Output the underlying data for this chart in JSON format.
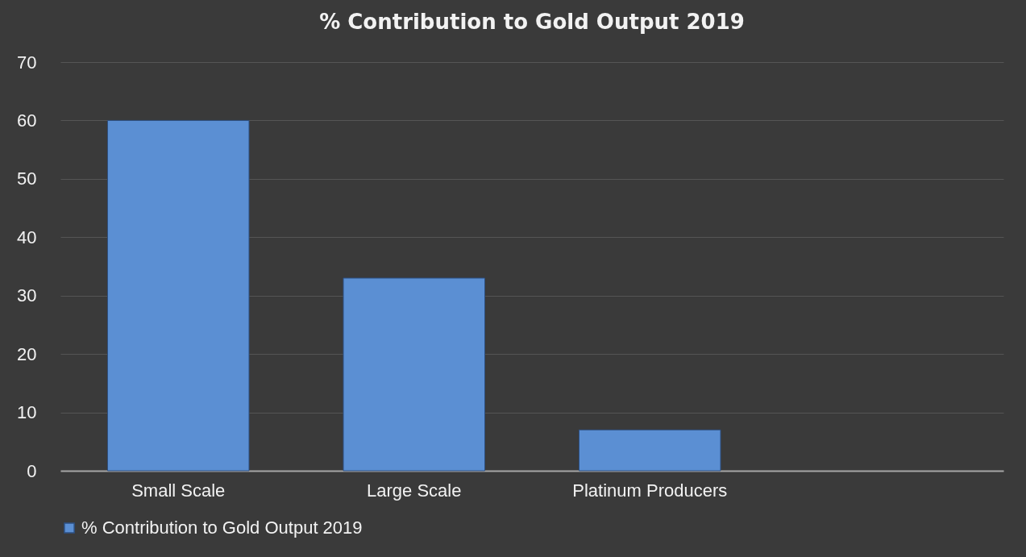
{
  "chart_data": {
    "type": "bar",
    "title": "% Contribution to Gold Output 2019",
    "categories": [
      "Small Scale",
      "Large Scale",
      "Platinum Producers",
      null
    ],
    "series": [
      {
        "name": "% Contribution to Gold Output 2019",
        "color": "#5b8fd3",
        "values": [
          60,
          33,
          7,
          null
        ]
      }
    ],
    "ylim": [
      0,
      70
    ],
    "yticks": [
      0,
      10,
      20,
      30,
      40,
      50,
      60,
      70
    ],
    "grid": "y",
    "legend": "bottom"
  }
}
